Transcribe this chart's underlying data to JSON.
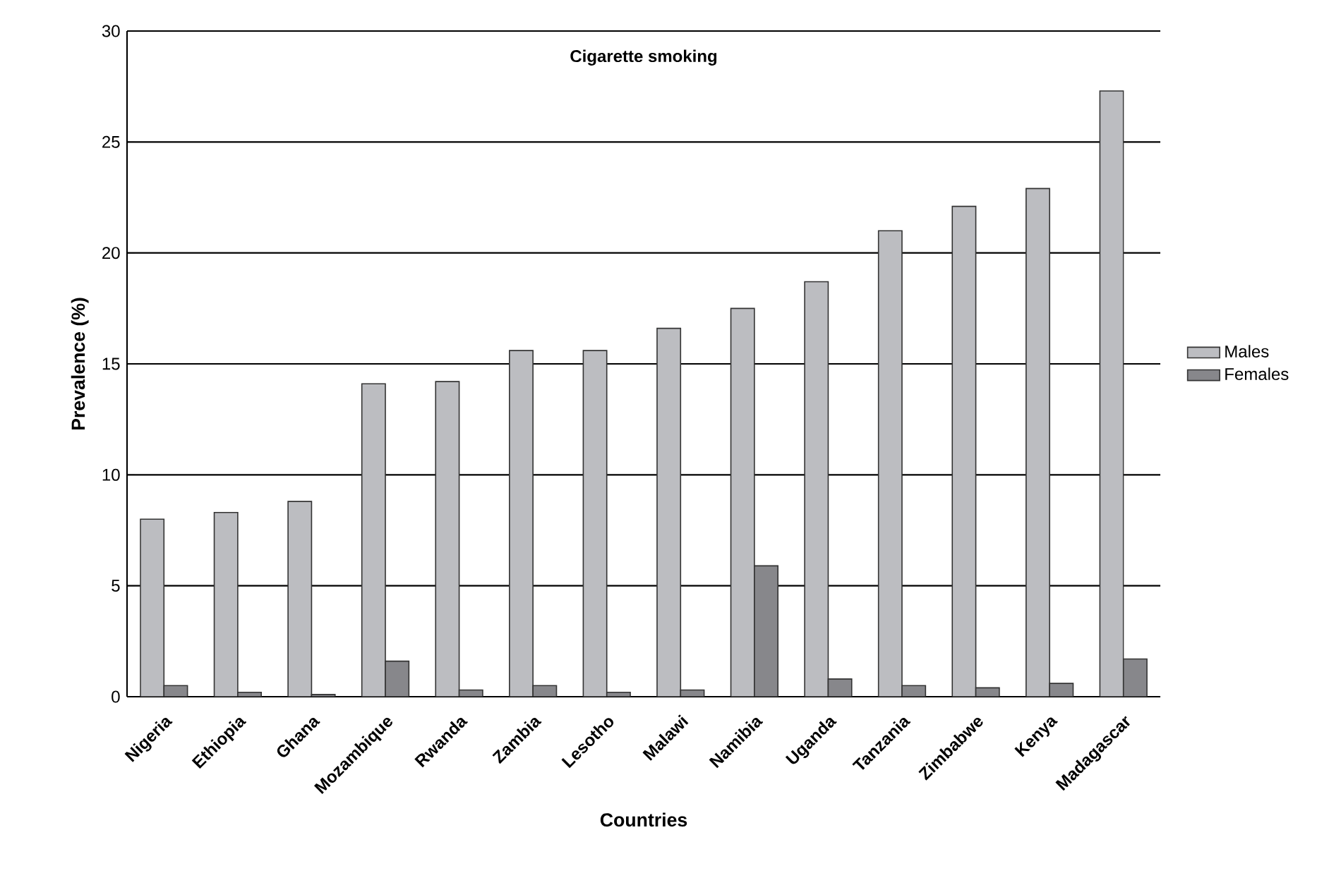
{
  "chart_data": {
    "type": "bar",
    "title": "Cigarette smoking",
    "xlabel": "Countries",
    "ylabel": "Prevalence (%)",
    "categories": [
      "Nigeria",
      "Ethiopia",
      "Ghana",
      "Mozambique",
      "Rwanda",
      "Zambia",
      "Lesotho",
      "Malawi",
      "Namibia",
      "Uganda",
      "Tanzania",
      "Zimbabwe",
      "Kenya",
      "Madagascar"
    ],
    "series": [
      {
        "name": "Males",
        "color": "#bcbdc1",
        "values": [
          8.0,
          8.3,
          8.8,
          14.1,
          14.2,
          15.6,
          15.6,
          16.6,
          17.5,
          18.7,
          21.0,
          22.1,
          22.9,
          27.3
        ]
      },
      {
        "name": "Females",
        "color": "#87878b",
        "values": [
          0.5,
          0.2,
          0.1,
          1.6,
          0.3,
          0.5,
          0.2,
          0.3,
          5.9,
          0.8,
          0.5,
          0.4,
          0.6,
          1.7
        ]
      }
    ],
    "ylim": [
      0,
      30
    ],
    "yticks": [
      0,
      5,
      10,
      15,
      20,
      25,
      30
    ],
    "grid": "y",
    "legend": "right"
  }
}
